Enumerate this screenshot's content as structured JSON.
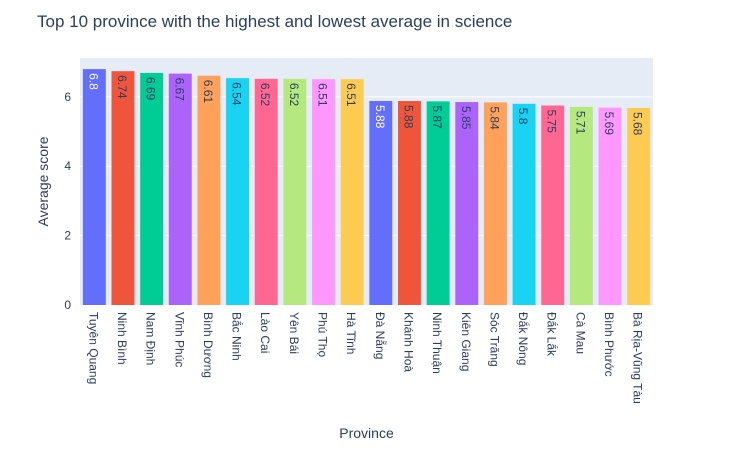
{
  "chart_data": {
    "type": "bar",
    "title": "Top 10 province with the highest and lowest average in science",
    "xlabel": "Province",
    "ylabel": "Average score",
    "ylim": [
      0,
      7.12
    ],
    "yticks": [
      0,
      2,
      4,
      6
    ],
    "grid": true,
    "categories": [
      "Tuyên Quang",
      "Ninh Bình",
      "Nam Định",
      "Vĩnh Phúc",
      "Bình Dương",
      "Bắc Ninh",
      "Lào Cai",
      "Yên Bái",
      "Phú Thọ",
      "Hà Tĩnh",
      "Đà Nẵng",
      "Khánh Hoà",
      "Ninh Thuận",
      "Kiên Giang",
      "Sóc Trăng",
      "Đắk Nông",
      "Đắk Lắk",
      "Cà Mau",
      "Bình Phước",
      "Bà Rịa-Vũng Tàu"
    ],
    "values": [
      6.8,
      6.74,
      6.69,
      6.67,
      6.61,
      6.54,
      6.52,
      6.52,
      6.51,
      6.51,
      5.88,
      5.88,
      5.87,
      5.85,
      5.84,
      5.8,
      5.75,
      5.71,
      5.69,
      5.68
    ],
    "colors": [
      "#636efa",
      "#ef553b",
      "#00cc96",
      "#ab63fa",
      "#ffa15a",
      "#19d3f3",
      "#ff6692",
      "#b6e880",
      "#ff97ff",
      "#fecb52",
      "#636efa",
      "#ef553b",
      "#00cc96",
      "#ab63fa",
      "#ffa15a",
      "#19d3f3",
      "#ff6692",
      "#b6e880",
      "#ff97ff",
      "#fecb52"
    ],
    "label_colors": [
      "#ffffff",
      "#2a3f5f",
      "#2a3f5f",
      "#2a3f5f",
      "#2a3f5f",
      "#2a3f5f",
      "#2a3f5f",
      "#2a3f5f",
      "#2a3f5f",
      "#2a3f5f",
      "#ffffff",
      "#2a3f5f",
      "#2a3f5f",
      "#2a3f5f",
      "#2a3f5f",
      "#2a3f5f",
      "#2a3f5f",
      "#2a3f5f",
      "#2a3f5f",
      "#2a3f5f"
    ],
    "plot_background": "#e5ecf6",
    "text_color": "#2a3f5f"
  }
}
